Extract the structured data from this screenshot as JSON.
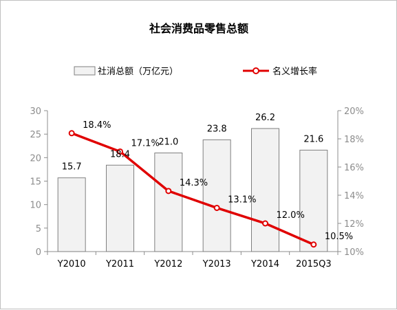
{
  "chart_data": {
    "type": "bar",
    "title": "社会消费品零售总额",
    "categories": [
      "Y2010",
      "Y2011",
      "Y2012",
      "Y2013",
      "Y2014",
      "2015Q3"
    ],
    "series": [
      {
        "name": "社消总额（万亿元）",
        "type": "bar",
        "axis": "left",
        "values": [
          15.7,
          18.4,
          21.0,
          23.8,
          26.2,
          21.6
        ],
        "labels": [
          "15.7",
          "18.4",
          "21.0",
          "23.8",
          "26.2",
          "21.6"
        ]
      },
      {
        "name": "名义增长率",
        "type": "line",
        "axis": "right",
        "values": [
          18.4,
          17.1,
          14.3,
          13.1,
          12.0,
          10.5
        ],
        "labels": [
          "18.4%",
          "17.1%",
          "14.3%",
          "13.1%",
          "12.0%",
          "10.5%"
        ]
      }
    ],
    "yleft": {
      "min": 0,
      "max": 30,
      "ticks": [
        "0",
        "5",
        "10",
        "15",
        "20",
        "25",
        "30"
      ]
    },
    "yright": {
      "min": 10,
      "max": 20,
      "ticks": [
        "10%",
        "12%",
        "14%",
        "16%",
        "18%",
        "20%"
      ]
    },
    "colors": {
      "bar_fill": "#f2f2f2",
      "bar_stroke": "#7f7f7f",
      "line": "#e00000",
      "marker_fill": "#ffffff"
    },
    "legend_position": "top"
  }
}
